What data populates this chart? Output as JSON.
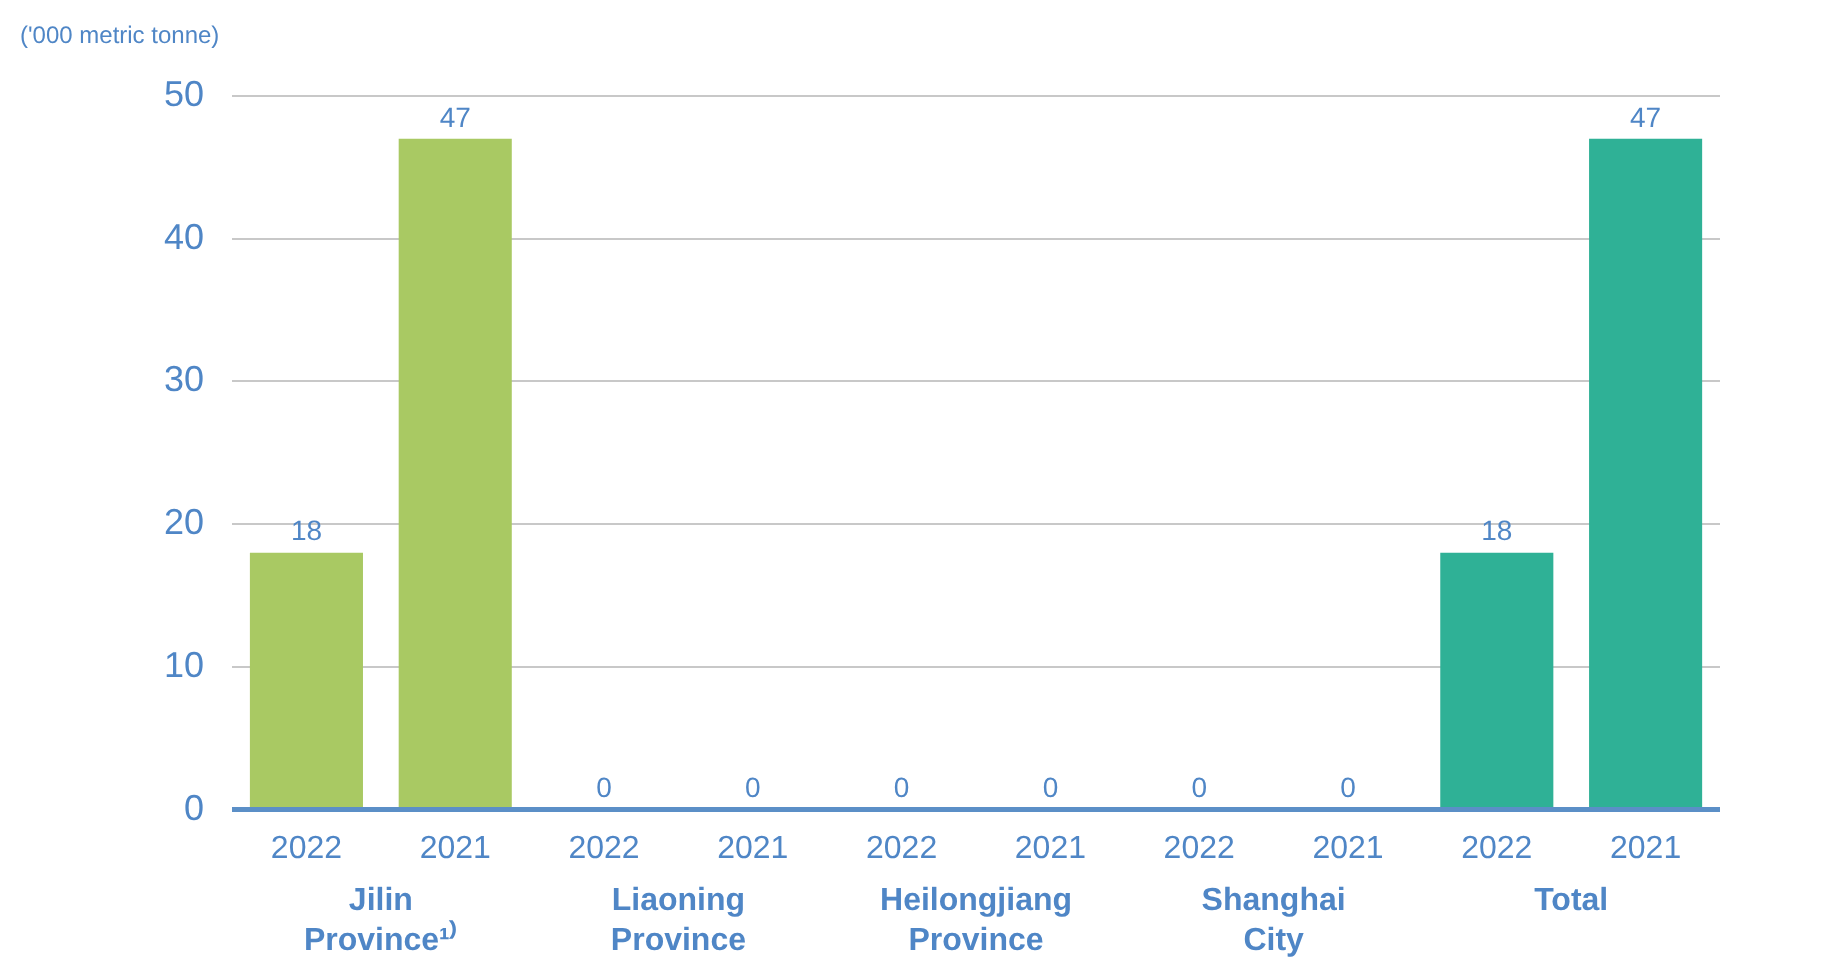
{
  "chart_data": {
    "type": "bar",
    "ylabel": "('000 metric tonne)",
    "categories": [
      "2022",
      "2021",
      "2022",
      "2021",
      "2022",
      "2021",
      "2022",
      "2021",
      "2022",
      "2021"
    ],
    "values": [
      18,
      47,
      0,
      0,
      0,
      0,
      0,
      0,
      18,
      47
    ],
    "colors": [
      "#a9c963",
      "#a9c963",
      "#a9c963",
      "#a9c963",
      "#a9c963",
      "#a9c963",
      "#a9c963",
      "#a9c963",
      "#2fb196",
      "#2fb196"
    ],
    "annotations": [
      "Jilin Province¹⁾",
      "Liaoning Province",
      "Heilongjiang Province",
      "Shanghai City",
      "Total"
    ],
    "ylim": [
      0,
      50
    ],
    "yticks": [
      0,
      10,
      20,
      30,
      40,
      50
    ],
    "grid": "y",
    "data_labels": true
  }
}
